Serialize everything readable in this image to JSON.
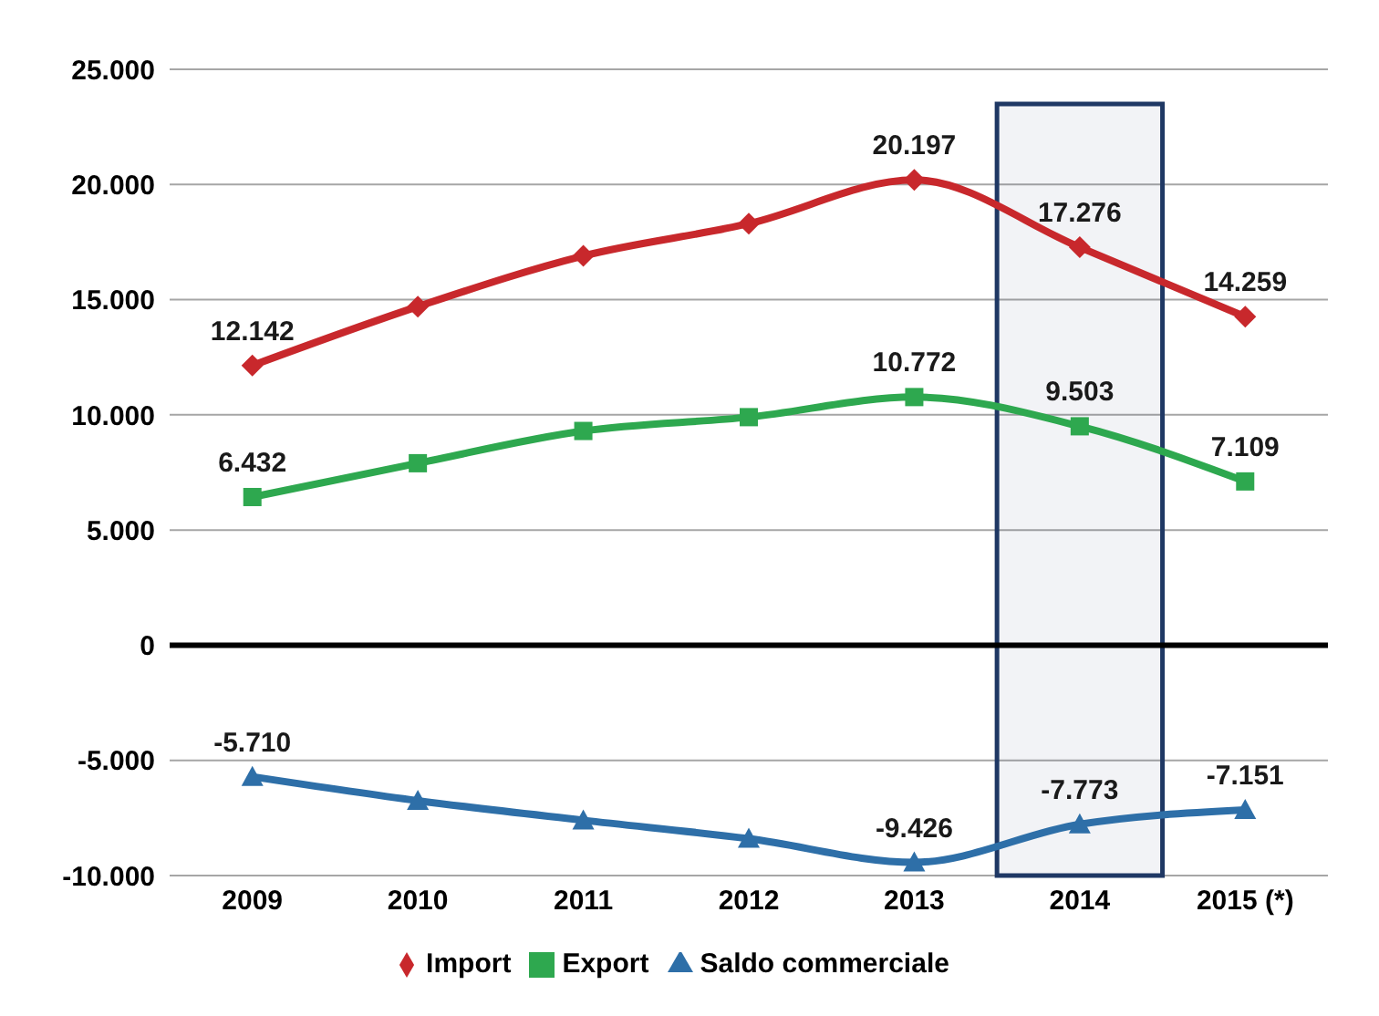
{
  "chart_data": {
    "type": "line",
    "categories": [
      "2009",
      "2010",
      "2011",
      "2012",
      "2013",
      "2014",
      "2015 (*)"
    ],
    "series": [
      {
        "name": "Import",
        "color": "#c8282c",
        "marker": "diamond",
        "values": [
          12142,
          14700,
          16900,
          18300,
          20197,
          17276,
          14259
        ],
        "value_labels": [
          "12.142",
          null,
          null,
          null,
          "20.197",
          "17.276",
          "14.259"
        ]
      },
      {
        "name": "Export",
        "color": "#2ea84f",
        "marker": "square",
        "values": [
          6432,
          7900,
          9300,
          9900,
          10772,
          9503,
          7109
        ],
        "value_labels": [
          "6.432",
          null,
          null,
          null,
          "10.772",
          "9.503",
          "7.109"
        ]
      },
      {
        "name": "Saldo commerciale",
        "color": "#2e6fa8",
        "marker": "triangle",
        "values": [
          -5710,
          -6750,
          -7600,
          -8400,
          -9426,
          -7773,
          -7151
        ],
        "value_labels": [
          "-5.710",
          null,
          null,
          null,
          "-9.426",
          "-7.773",
          "-7.151"
        ]
      }
    ],
    "ylim": [
      -10000,
      25000
    ],
    "yticks": [
      {
        "value": -10000,
        "label": "-10.000"
      },
      {
        "value": -5000,
        "label": "-5.000"
      },
      0,
      {
        "value": 5000,
        "label": "5.000"
      },
      {
        "value": 10000,
        "label": "10.000"
      },
      {
        "value": 15000,
        "label": "15.000"
      },
      {
        "value": 20000,
        "label": "20.000"
      },
      {
        "value": 25000,
        "label": "25.000"
      }
    ],
    "grid": "y",
    "legend": "bottom",
    "ref_lines": [
      {
        "axis": "y",
        "value": 0,
        "color": "#000000"
      }
    ],
    "bands": [
      {
        "axis": "x",
        "from": "2014",
        "to": "2014",
        "color": "#1f3864"
      }
    ]
  }
}
